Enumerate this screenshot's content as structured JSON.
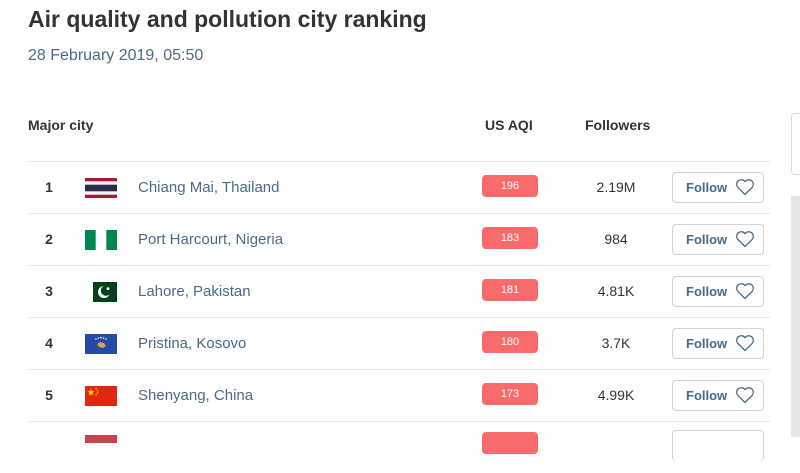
{
  "title": "Air quality and pollution city ranking",
  "date": "28 February 2019, 05:50",
  "headers": {
    "city": "Major city",
    "aqi": "US AQI",
    "followers": "Followers"
  },
  "colors": {
    "aqi_badge": "#f96b6b",
    "link": "#4a6a8a"
  },
  "rows": [
    {
      "rank": "1",
      "city": "Chiang Mai, Thailand",
      "aqi": "196",
      "followers": "2.19M",
      "follow_label": "Follow",
      "flag": "thailand-flag"
    },
    {
      "rank": "2",
      "city": "Port Harcourt, Nigeria",
      "aqi": "183",
      "followers": "984",
      "follow_label": "Follow",
      "flag": "nigeria-flag"
    },
    {
      "rank": "3",
      "city": "Lahore, Pakistan",
      "aqi": "181",
      "followers": "4.81K",
      "follow_label": "Follow",
      "flag": "pakistan-flag"
    },
    {
      "rank": "4",
      "city": "Pristina, Kosovo",
      "aqi": "180",
      "followers": "3.7K",
      "follow_label": "Follow",
      "flag": "kosovo-flag"
    },
    {
      "rank": "5",
      "city": "Shenyang, China",
      "aqi": "173",
      "followers": "4.99K",
      "follow_label": "Follow",
      "flag": "china-flag"
    },
    {
      "rank": "",
      "city": "",
      "aqi": "",
      "followers": "",
      "follow_label": "",
      "flag": "partial-flag"
    }
  ]
}
